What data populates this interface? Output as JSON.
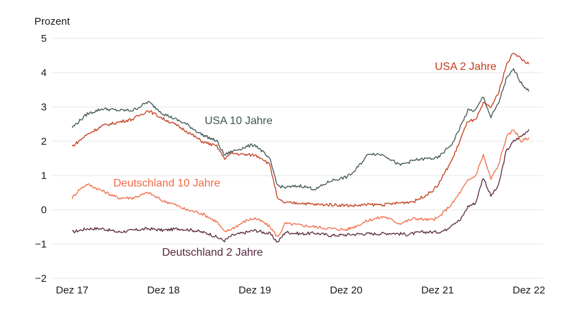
{
  "chart_data": {
    "type": "line",
    "title": "",
    "ylabel": "Prozent",
    "xlabel": "",
    "ylim": [
      -2,
      5
    ],
    "yticks": [
      5,
      4,
      3,
      2,
      1,
      0,
      -1,
      -2
    ],
    "ytick_labels": [
      "5",
      "4",
      "3",
      "2",
      "1",
      "0",
      "−1",
      "−2"
    ],
    "xlim": [
      "2017-12",
      "2022-12"
    ],
    "xticks": [
      "2017-12",
      "2018-12",
      "2019-12",
      "2020-12",
      "2021-12",
      "2022-12"
    ],
    "xtick_labels": [
      "Dez 17",
      "Dez 18",
      "Dez 19",
      "Dez 20",
      "Dez 21",
      "Dez 22"
    ],
    "grid": "horizontal",
    "legend": "none (direct labels)",
    "series": [
      {
        "name": "USA 10 Jahre",
        "color": "#3d5252",
        "points": [
          [
            "2017-12",
            2.4
          ],
          [
            "2018-02",
            2.8
          ],
          [
            "2018-04",
            2.95
          ],
          [
            "2018-06",
            2.9
          ],
          [
            "2018-08",
            2.9
          ],
          [
            "2018-10",
            3.15
          ],
          [
            "2018-12",
            2.8
          ],
          [
            "2019-01",
            2.7
          ],
          [
            "2019-03",
            2.5
          ],
          [
            "2019-05",
            2.2
          ],
          [
            "2019-07",
            2.0
          ],
          [
            "2019-08",
            1.6
          ],
          [
            "2019-09",
            1.7
          ],
          [
            "2019-11",
            1.85
          ],
          [
            "2019-12",
            1.9
          ],
          [
            "2020-01",
            1.7
          ],
          [
            "2020-02",
            1.45
          ],
          [
            "2020-03",
            0.7
          ],
          [
            "2020-04",
            0.65
          ],
          [
            "2020-06",
            0.7
          ],
          [
            "2020-08",
            0.6
          ],
          [
            "2020-10",
            0.85
          ],
          [
            "2020-12",
            0.95
          ],
          [
            "2021-01",
            1.1
          ],
          [
            "2021-03",
            1.65
          ],
          [
            "2021-05",
            1.6
          ],
          [
            "2021-07",
            1.3
          ],
          [
            "2021-09",
            1.45
          ],
          [
            "2021-11",
            1.5
          ],
          [
            "2021-12",
            1.5
          ],
          [
            "2022-02",
            1.95
          ],
          [
            "2022-04",
            2.9
          ],
          [
            "2022-05",
            2.9
          ],
          [
            "2022-06",
            3.3
          ],
          [
            "2022-07",
            2.7
          ],
          [
            "2022-08",
            3.1
          ],
          [
            "2022-09",
            3.8
          ],
          [
            "2022-10",
            4.1
          ],
          [
            "2022-11",
            3.7
          ],
          [
            "2022-12",
            3.45
          ]
        ]
      },
      {
        "name": "USA 2 Jahre",
        "color": "#c23a18",
        "points": [
          [
            "2017-12",
            1.85
          ],
          [
            "2018-02",
            2.2
          ],
          [
            "2018-04",
            2.45
          ],
          [
            "2018-06",
            2.55
          ],
          [
            "2018-08",
            2.65
          ],
          [
            "2018-10",
            2.9
          ],
          [
            "2018-12",
            2.65
          ],
          [
            "2019-01",
            2.55
          ],
          [
            "2019-03",
            2.3
          ],
          [
            "2019-05",
            2.0
          ],
          [
            "2019-07",
            1.85
          ],
          [
            "2019-08",
            1.5
          ],
          [
            "2019-09",
            1.65
          ],
          [
            "2019-11",
            1.6
          ],
          [
            "2019-12",
            1.6
          ],
          [
            "2020-01",
            1.5
          ],
          [
            "2020-02",
            1.3
          ],
          [
            "2020-03",
            0.3
          ],
          [
            "2020-04",
            0.2
          ],
          [
            "2020-06",
            0.2
          ],
          [
            "2020-08",
            0.15
          ],
          [
            "2020-10",
            0.15
          ],
          [
            "2020-12",
            0.13
          ],
          [
            "2021-01",
            0.12
          ],
          [
            "2021-03",
            0.15
          ],
          [
            "2021-05",
            0.15
          ],
          [
            "2021-07",
            0.2
          ],
          [
            "2021-09",
            0.25
          ],
          [
            "2021-11",
            0.5
          ],
          [
            "2021-12",
            0.7
          ],
          [
            "2022-02",
            1.5
          ],
          [
            "2022-04",
            2.6
          ],
          [
            "2022-05",
            2.6
          ],
          [
            "2022-06",
            3.1
          ],
          [
            "2022-07",
            3.0
          ],
          [
            "2022-08",
            3.4
          ],
          [
            "2022-09",
            4.2
          ],
          [
            "2022-10",
            4.6
          ],
          [
            "2022-11",
            4.4
          ],
          [
            "2022-12",
            4.25
          ]
        ]
      },
      {
        "name": "Deutschland 10 Jahre",
        "color": "#f26a44",
        "points": [
          [
            "2017-12",
            0.35
          ],
          [
            "2018-01",
            0.6
          ],
          [
            "2018-02",
            0.75
          ],
          [
            "2018-04",
            0.55
          ],
          [
            "2018-06",
            0.35
          ],
          [
            "2018-08",
            0.35
          ],
          [
            "2018-10",
            0.5
          ],
          [
            "2018-12",
            0.25
          ],
          [
            "2019-01",
            0.2
          ],
          [
            "2019-03",
            0.0
          ],
          [
            "2019-05",
            -0.1
          ],
          [
            "2019-07",
            -0.35
          ],
          [
            "2019-08",
            -0.65
          ],
          [
            "2019-09",
            -0.55
          ],
          [
            "2019-11",
            -0.3
          ],
          [
            "2019-12",
            -0.25
          ],
          [
            "2020-01",
            -0.35
          ],
          [
            "2020-02",
            -0.5
          ],
          [
            "2020-03",
            -0.8
          ],
          [
            "2020-04",
            -0.4
          ],
          [
            "2020-06",
            -0.45
          ],
          [
            "2020-08",
            -0.5
          ],
          [
            "2020-10",
            -0.55
          ],
          [
            "2020-12",
            -0.58
          ],
          [
            "2021-01",
            -0.5
          ],
          [
            "2021-03",
            -0.3
          ],
          [
            "2021-05",
            -0.2
          ],
          [
            "2021-07",
            -0.4
          ],
          [
            "2021-09",
            -0.25
          ],
          [
            "2021-11",
            -0.3
          ],
          [
            "2021-12",
            -0.25
          ],
          [
            "2022-02",
            0.2
          ],
          [
            "2022-04",
            0.85
          ],
          [
            "2022-05",
            1.0
          ],
          [
            "2022-06",
            1.6
          ],
          [
            "2022-07",
            0.9
          ],
          [
            "2022-08",
            1.3
          ],
          [
            "2022-09",
            2.1
          ],
          [
            "2022-10",
            2.35
          ],
          [
            "2022-11",
            2.0
          ],
          [
            "2022-12",
            2.1
          ]
        ]
      },
      {
        "name": "Deutschland 2 Jahre",
        "color": "#55263c",
        "points": [
          [
            "2017-12",
            -0.65
          ],
          [
            "2018-02",
            -0.55
          ],
          [
            "2018-04",
            -0.55
          ],
          [
            "2018-06",
            -0.65
          ],
          [
            "2018-08",
            -0.6
          ],
          [
            "2018-10",
            -0.55
          ],
          [
            "2018-12",
            -0.6
          ],
          [
            "2019-02",
            -0.55
          ],
          [
            "2019-04",
            -0.6
          ],
          [
            "2019-06",
            -0.7
          ],
          [
            "2019-08",
            -0.9
          ],
          [
            "2019-09",
            -0.75
          ],
          [
            "2019-11",
            -0.65
          ],
          [
            "2019-12",
            -0.6
          ],
          [
            "2020-01",
            -0.65
          ],
          [
            "2020-02",
            -0.7
          ],
          [
            "2020-03",
            -0.95
          ],
          [
            "2020-04",
            -0.65
          ],
          [
            "2020-06",
            -0.7
          ],
          [
            "2020-08",
            -0.68
          ],
          [
            "2020-10",
            -0.75
          ],
          [
            "2020-12",
            -0.73
          ],
          [
            "2021-02",
            -0.7
          ],
          [
            "2021-04",
            -0.7
          ],
          [
            "2021-06",
            -0.68
          ],
          [
            "2021-08",
            -0.72
          ],
          [
            "2021-10",
            -0.65
          ],
          [
            "2021-12",
            -0.65
          ],
          [
            "2022-01",
            -0.6
          ],
          [
            "2022-02",
            -0.4
          ],
          [
            "2022-03",
            -0.3
          ],
          [
            "2022-04",
            0.1
          ],
          [
            "2022-05",
            0.2
          ],
          [
            "2022-06",
            0.95
          ],
          [
            "2022-07",
            0.4
          ],
          [
            "2022-08",
            0.7
          ],
          [
            "2022-09",
            1.7
          ],
          [
            "2022-10",
            2.0
          ],
          [
            "2022-11",
            2.15
          ],
          [
            "2022-12",
            2.35
          ]
        ]
      }
    ]
  }
}
